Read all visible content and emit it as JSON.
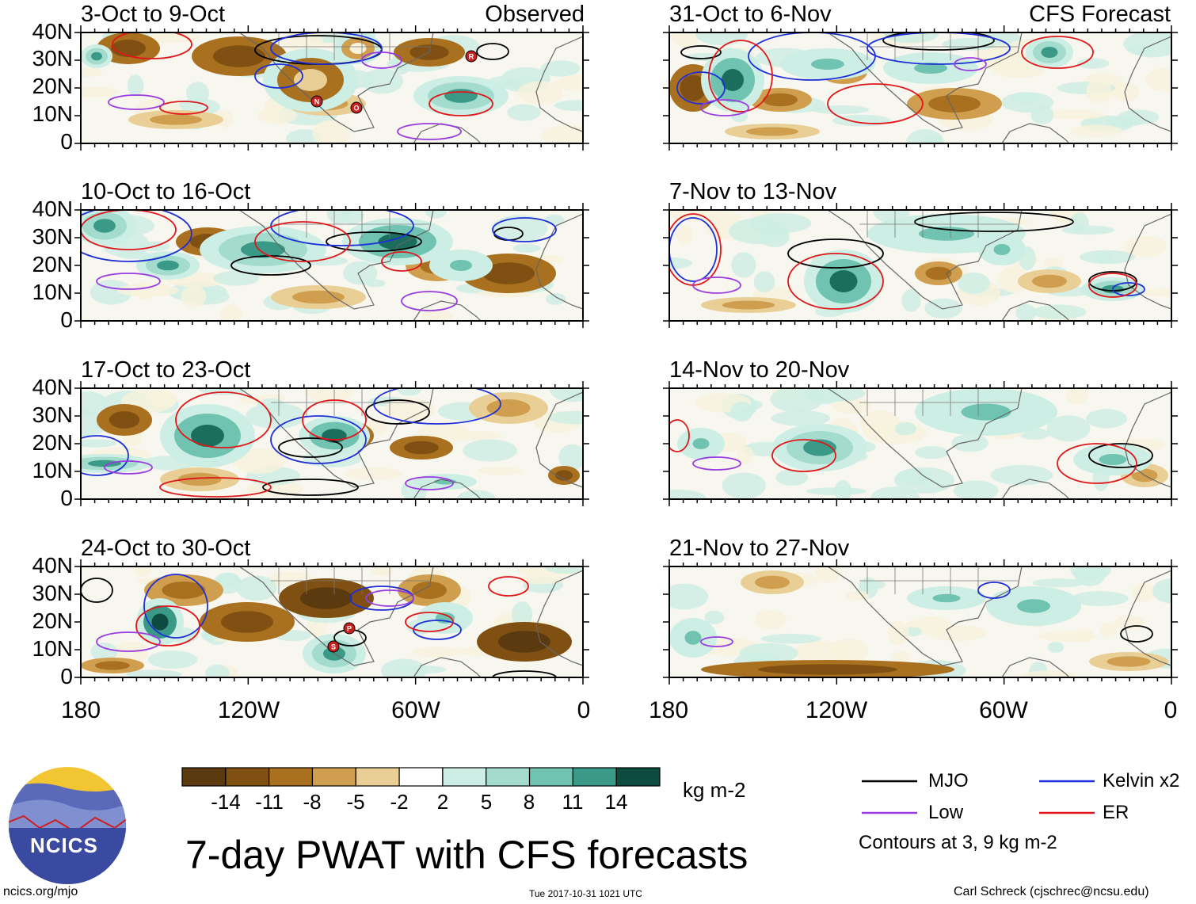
{
  "header": {
    "observed_label": "Observed",
    "forecast_label": "CFS Forecast"
  },
  "title": "7-day PWAT with CFS forecasts",
  "footer": {
    "site": "ncics.org/mjo",
    "timestamp": "Tue 2017-10-31 1021 UTC",
    "author": "Carl Schreck (cjschrec@ncsu.edu)"
  },
  "logo": {
    "text": "NCICS"
  },
  "chart_data": {
    "type": "heatmap",
    "variable": "7-day PWAT anomaly",
    "units": "kg m-2",
    "x_axis": {
      "ticks": [
        "180",
        "120W",
        "60W",
        "0"
      ],
      "range_deg_east": [
        -180,
        0
      ]
    },
    "y_axis": {
      "ticks": [
        "40N",
        "30N",
        "20N",
        "10N",
        "0"
      ],
      "range_deg_north": [
        0,
        40
      ]
    },
    "panels": [
      {
        "title": "3-Oct to 9-Oct",
        "kind": "Observed",
        "storms": [
          "N",
          "O",
          "R"
        ]
      },
      {
        "title": "10-Oct to 16-Oct",
        "kind": "Observed",
        "storms": []
      },
      {
        "title": "17-Oct to 23-Oct",
        "kind": "Observed",
        "storms": []
      },
      {
        "title": "24-Oct to 30-Oct",
        "kind": "Observed",
        "storms": [
          "P",
          "S"
        ]
      },
      {
        "title": "31-Oct to 6-Nov",
        "kind": "CFS Forecast",
        "storms": []
      },
      {
        "title": "7-Nov to 13-Nov",
        "kind": "CFS Forecast",
        "storms": []
      },
      {
        "title": "14-Nov to 20-Nov",
        "kind": "CFS Forecast",
        "storms": []
      },
      {
        "title": "21-Nov to 27-Nov",
        "kind": "CFS Forecast",
        "storms": []
      }
    ],
    "colorbar": {
      "ticks": [
        "-14",
        "-11",
        "-8",
        "-5",
        "-2",
        "2",
        "5",
        "8",
        "11",
        "14"
      ],
      "colors": [
        "#5a3a0e",
        "#7f5012",
        "#a8701f",
        "#cf9e4e",
        "#e9cf95",
        "#f7f2dc",
        "#ffffff",
        "#cdeee4",
        "#a3dccd",
        "#6fc3b0",
        "#3a9a87",
        "#1b6e5e",
        "#0d4a3f"
      ]
    },
    "legend": [
      {
        "label": "MJO",
        "color": "#000000"
      },
      {
        "label": "Kelvin x2",
        "color": "#1d2fd8"
      },
      {
        "label": "Low",
        "color": "#9a3be0"
      },
      {
        "label": "ER",
        "color": "#e0171a"
      }
    ],
    "contours_note": "Contours at 3, 9 kg m-2"
  }
}
